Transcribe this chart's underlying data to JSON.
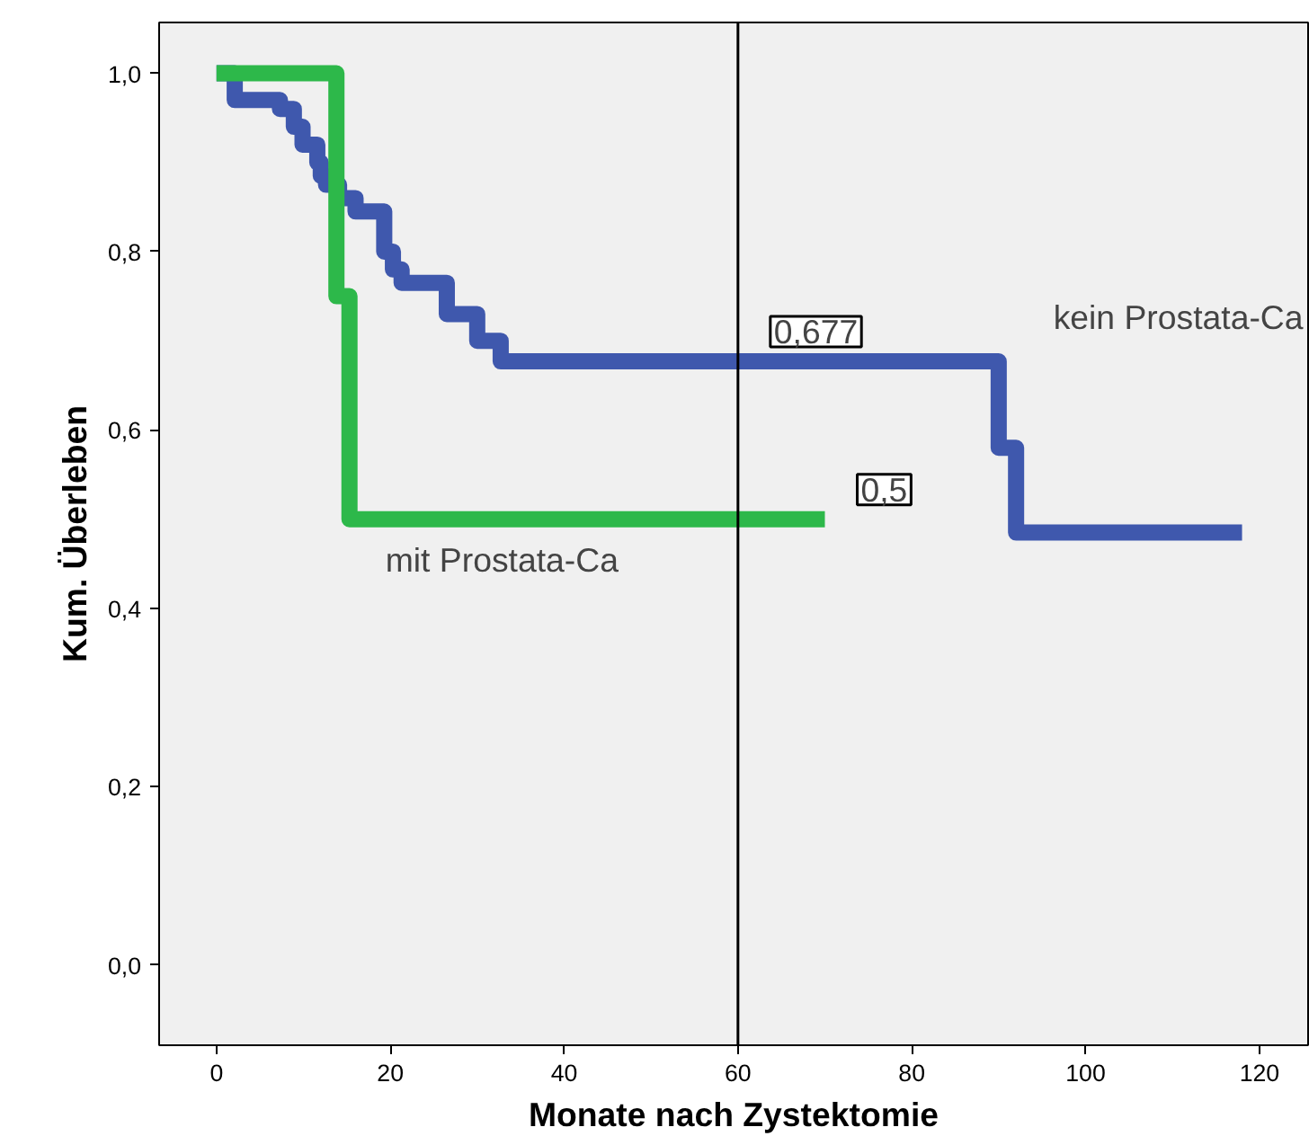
{
  "chart_data": {
    "type": "step",
    "xlabel": "Monate nach Zystektomie",
    "ylabel": "Kum. Überleben",
    "series": [
      {
        "name": "kein Prostata-Ca",
        "color": "#3f58ad",
        "x": [
          0,
          2.1,
          7.3,
          8.9,
          9.9,
          11.6,
          12.0,
          12.6,
          14.1,
          16.0,
          19.3,
          20.3,
          21.3,
          26.5,
          30.0,
          32.7,
          90,
          92,
          118
        ],
        "values": [
          1.0,
          0.97,
          0.96,
          0.94,
          0.92,
          0.9,
          0.885,
          0.875,
          0.86,
          0.845,
          0.8,
          0.78,
          0.765,
          0.73,
          0.7,
          0.677,
          0.58,
          0.485,
          0.485
        ]
      },
      {
        "name": "mit Prostata-Ca",
        "color": "#2db84a",
        "x": [
          0,
          13.8,
          15.3,
          70
        ],
        "values": [
          1.0,
          0.75,
          0.5,
          0.5
        ]
      }
    ],
    "annotations": [
      {
        "text": "0,677",
        "x": 60,
        "y": 0.677
      },
      {
        "text": "0,5",
        "x": 70,
        "y": 0.5
      }
    ],
    "ref_lines": [
      {
        "axis": "x",
        "value": 60,
        "label": null,
        "color": "#000000"
      }
    ],
    "xlim": [
      -6.6,
      125.6
    ],
    "ylim": [
      -0.09,
      1.057
    ],
    "xticks": [
      0,
      20,
      40,
      60,
      80,
      100,
      120
    ],
    "yticks": [
      {
        "value": 0,
        "label": "0,0"
      },
      {
        "value": 0.2,
        "label": "0,2"
      },
      {
        "value": 0.4,
        "label": "0,4"
      },
      {
        "value": 0.6,
        "label": "0,6"
      },
      {
        "value": 0.8,
        "label": "0,8"
      },
      {
        "value": 1.0,
        "label": "1,0"
      }
    ],
    "grid": false,
    "marker": "none",
    "line_style": "solid"
  }
}
